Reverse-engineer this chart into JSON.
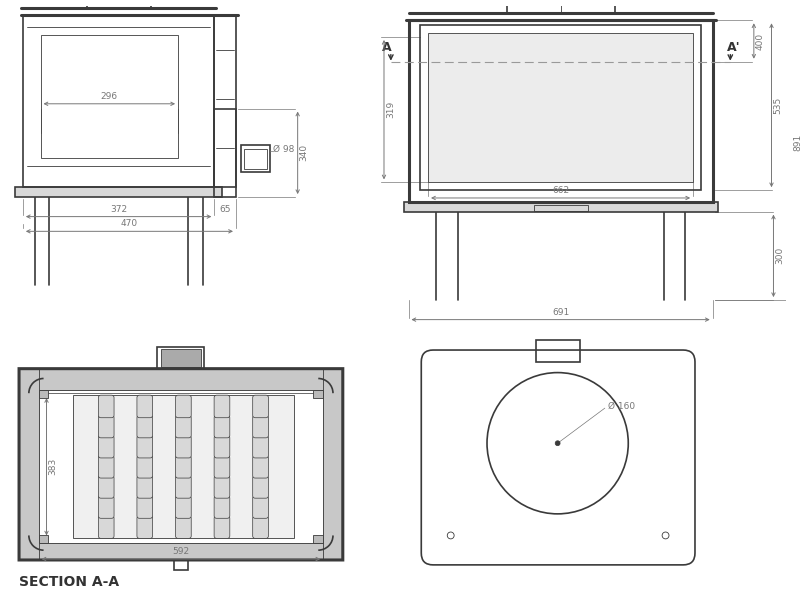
{
  "bg_color": "#ffffff",
  "line_color": "#3a3a3a",
  "dim_color": "#777777",
  "text_color": "#333333",
  "title": "SECTION A-A",
  "dimensions": {
    "side_296": "296",
    "side_98": "Ø 98",
    "side_340": "340",
    "side_372": "372",
    "side_65": "65",
    "side_470": "470",
    "front_319": "319",
    "front_662": "662",
    "front_400": "400",
    "front_535": "535",
    "front_891": "891",
    "front_300": "300",
    "front_691": "691",
    "section_383": "383",
    "section_592": "592",
    "back_160": "Ø 160"
  }
}
